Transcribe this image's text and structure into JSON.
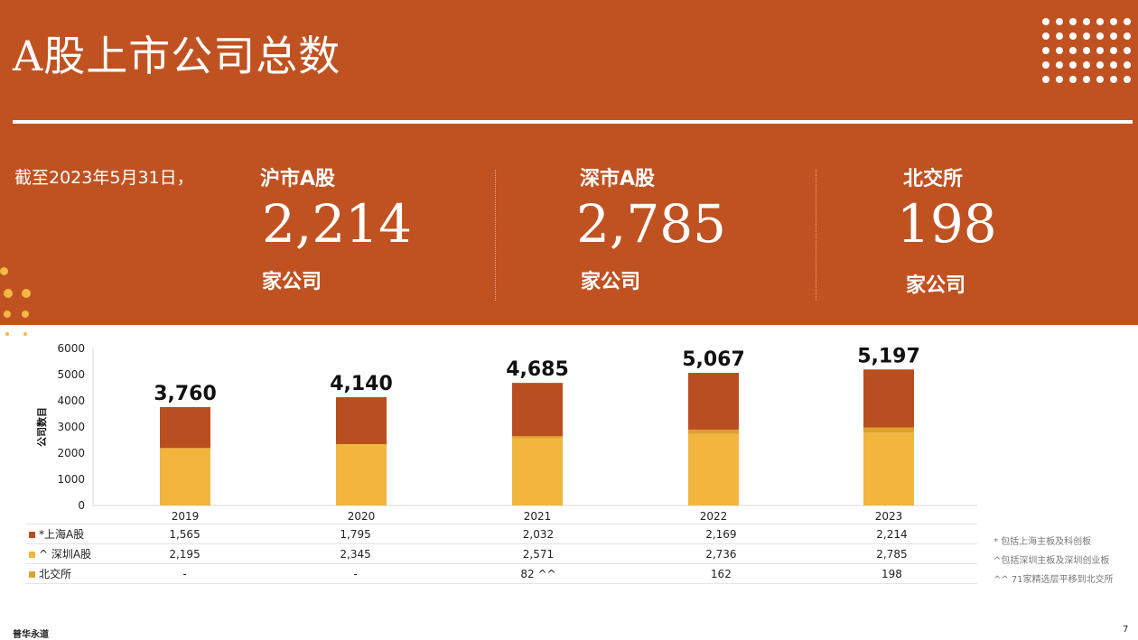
{
  "header": {
    "title": "A股上市公司总数",
    "as_of": "截至2023年5月31日，"
  },
  "stats": [
    {
      "label": "沪市A股",
      "value": "2,214",
      "unit": "家公司"
    },
    {
      "label": "深市A股",
      "value": "2,785",
      "unit": "家公司"
    },
    {
      "label": "北交所",
      "value": "198",
      "unit": "家公司"
    }
  ],
  "colors": {
    "brand": "#c05222",
    "shanghai": "#b94f20",
    "shenzhen": "#f2b53e",
    "bse": "#e0a030"
  },
  "chart_data": {
    "type": "bar",
    "stacked": true,
    "categories": [
      "2019",
      "2020",
      "2021",
      "2022",
      "2023"
    ],
    "ylabel": "公司数目",
    "ylim": [
      0,
      6000
    ],
    "yticks": [
      "0",
      "1000",
      "2000",
      "3000",
      "4000",
      "5000",
      "6000"
    ],
    "totals": [
      "3,760",
      "4,140",
      "4,685",
      "5,067",
      "5,197"
    ],
    "series": [
      {
        "name": "*上海A股",
        "values": [
          1565,
          1795,
          2032,
          2169,
          2214
        ],
        "labels": [
          "1,565",
          "1,795",
          "2,032",
          "2,169",
          "2,214"
        ]
      },
      {
        "name": "^ 深圳A股",
        "values": [
          2195,
          2345,
          2571,
          2736,
          2785
        ],
        "labels": [
          "2,195",
          "2,345",
          "2,571",
          "2,736",
          "2,785"
        ]
      },
      {
        "name": "北交所",
        "values": [
          0,
          0,
          82,
          162,
          198
        ],
        "labels": [
          "-",
          "-",
          "82 ^^",
          "162",
          "198"
        ]
      }
    ],
    "grid": false,
    "legend": "table-below"
  },
  "notes": [
    "* 包括上海主板及科创板",
    "^包括深圳主板及深圳创业板",
    "^^ 71家精选层平移到北交所"
  ],
  "footer": {
    "brand": "普华永道",
    "page": "7"
  }
}
